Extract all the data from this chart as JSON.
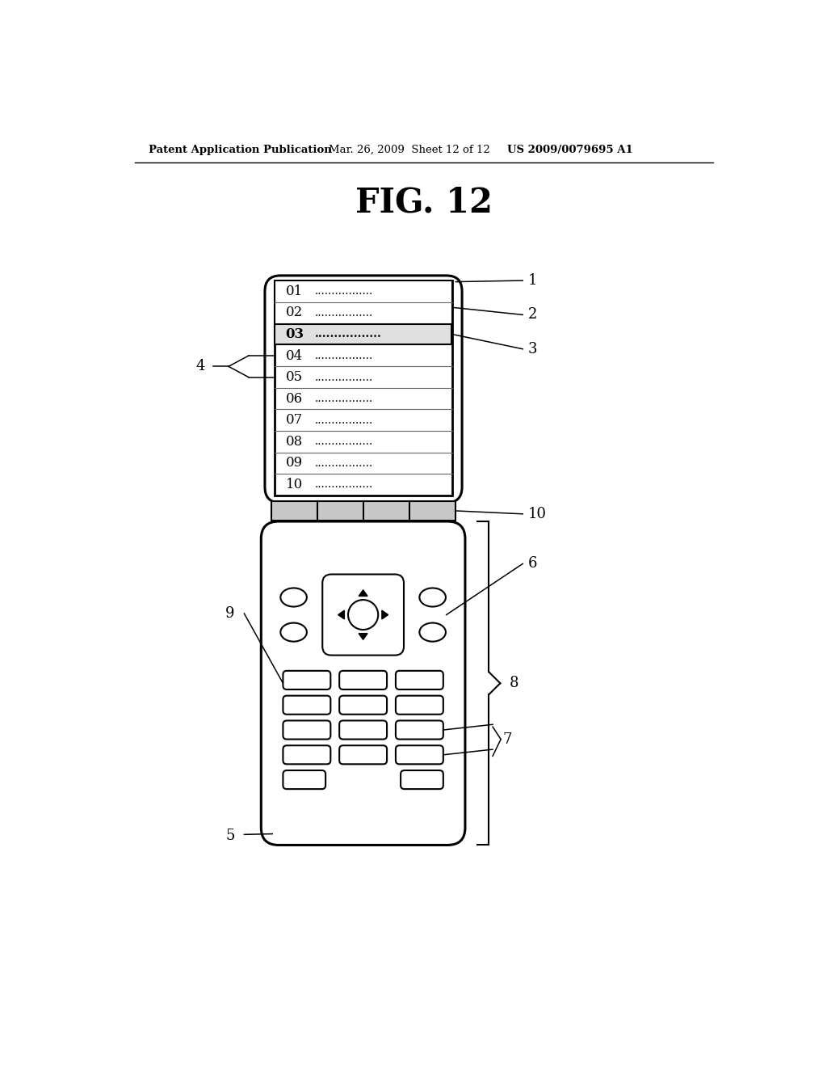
{
  "title": "FIG. 12",
  "header_left": "Patent Application Publication",
  "header_mid": "Mar. 26, 2009  Sheet 12 of 12",
  "header_right": "US 2009/0079695 A1",
  "bg_color": "#ffffff",
  "line_color": "#000000",
  "menu_items": [
    "01",
    "02",
    "03",
    "04",
    "05",
    "06",
    "07",
    "08",
    "09",
    "10"
  ],
  "dots": ".................",
  "selected_row": 2,
  "gray_highlight": "#e0e0e0",
  "hinge_gray": "#c8c8c8"
}
